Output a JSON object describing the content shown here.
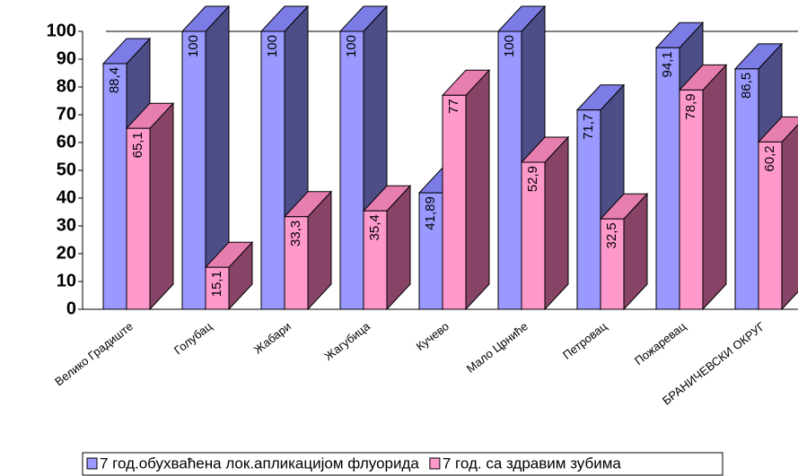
{
  "chart_data": {
    "type": "bar3d",
    "categories": [
      "Велико Градиште",
      "Голубац",
      "Жабари",
      "Жагубица",
      "Кучево",
      "Мало Црниће",
      "Петровац",
      "Пожаревац",
      "БРАНИЧЕВСКИ ОКРУГ"
    ],
    "series": [
      {
        "name": "7 год.обухваћена лок.апликацијом флуорида",
        "color": "#9999ff",
        "side": "#4d4d88",
        "top": "#7c7ce6",
        "values": [
          88.4,
          100,
          100,
          100,
          41.89,
          100,
          71.7,
          94.1,
          86.5
        ],
        "value_labels": [
          "88,4",
          "100",
          "100",
          "100",
          "41,89",
          "100",
          "71,7",
          "94,1",
          "86,5"
        ]
      },
      {
        "name": "7 год. са здравим зубима",
        "color": "#ff99cc",
        "side": "#884466",
        "top": "#e67eb0",
        "values": [
          65.1,
          15.1,
          33.3,
          35.4,
          77,
          52.9,
          32.5,
          78.9,
          60.2
        ],
        "value_labels": [
          "65,1",
          "15,1",
          "33,3",
          "35,4",
          "77",
          "52,9",
          "32,5",
          "78,9",
          "60,2"
        ]
      }
    ],
    "ylim": [
      0,
      100
    ],
    "yticks": [
      0,
      10,
      20,
      30,
      40,
      50,
      60,
      70,
      80,
      90,
      100
    ]
  }
}
